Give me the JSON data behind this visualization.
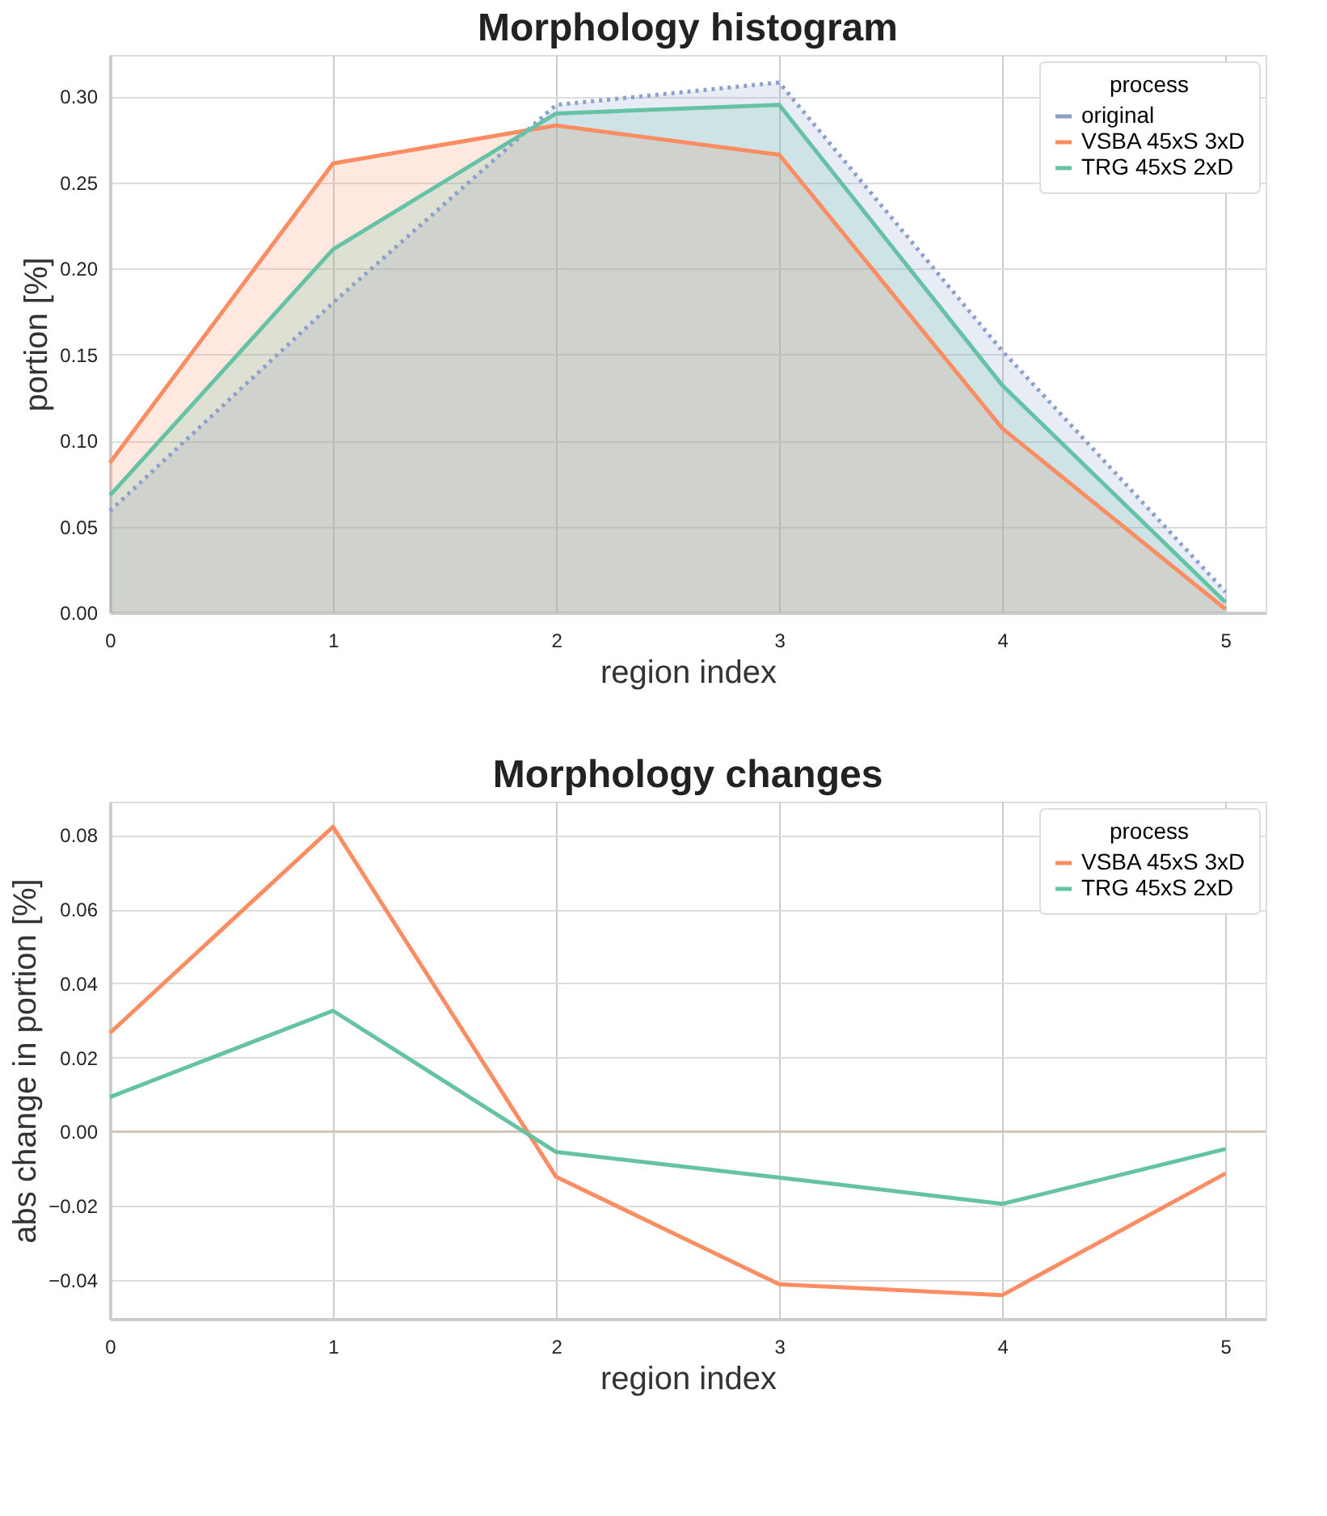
{
  "chart_data": [
    {
      "type": "area",
      "title": "Morphology histogram",
      "xlabel": "region index",
      "ylabel": "portion [%]",
      "legend_title": "process",
      "legend": "top right",
      "grid": true,
      "x": [
        0,
        1,
        2,
        3,
        4,
        5
      ],
      "xlim": [
        0,
        5.18
      ],
      "xticks": [
        0,
        1,
        2,
        3,
        4,
        5
      ],
      "ylim": [
        0,
        0.324
      ],
      "yticks": [
        {
          "value": 0,
          "label": "0.00"
        },
        0.05,
        {
          "value": 0.1,
          "label": "0.10"
        },
        0.15,
        {
          "value": 0.2,
          "label": "0.20"
        },
        0.25,
        {
          "value": 0.3,
          "label": "0.30"
        }
      ],
      "series": [
        {
          "name": "original",
          "line_style": "dotted",
          "color": "#8da0cb",
          "values": [
            0.059,
            0.18,
            0.295,
            0.308,
            0.152,
            0.012
          ]
        },
        {
          "name": "VSBA 45xS 3xD",
          "line_style": "solid",
          "color": "#fc8d62",
          "values": [
            0.087,
            0.261,
            0.283,
            0.266,
            0.107,
            0.002
          ]
        },
        {
          "name": "TRG 45xS 2xD",
          "line_style": "solid",
          "color": "#66c2a5",
          "values": [
            0.068,
            0.211,
            0.29,
            0.295,
            0.132,
            0.006
          ]
        }
      ]
    },
    {
      "type": "line",
      "title": "Morphology changes",
      "xlabel": "region index",
      "ylabel": "abs change in portion [%]",
      "legend_title": "process",
      "legend": "top right",
      "grid": true,
      "x": [
        0,
        1,
        2,
        3,
        4,
        5
      ],
      "xlim": [
        0,
        5.18
      ],
      "xticks": [
        0,
        1,
        2,
        3,
        4,
        5
      ],
      "ylim": [
        -0.0505,
        0.089
      ],
      "yticks": [
        -0.04,
        -0.02,
        {
          "value": 0,
          "label": "0.00"
        },
        0.02,
        0.04,
        0.06,
        0.08
      ],
      "ref_lines": [
        {
          "axis": "y",
          "value": 0,
          "color": "#d2c6b6"
        }
      ],
      "series": [
        {
          "name": "VSBA 45xS 3xD",
          "line_style": "solid",
          "color": "#fc8d62",
          "values": [
            0.0266,
            0.0822,
            -0.0122,
            -0.0412,
            -0.0441,
            -0.0113
          ]
        },
        {
          "name": "TRG 45xS 2xD",
          "line_style": "solid",
          "color": "#66c2a5",
          "values": [
            0.0093,
            0.0326,
            -0.0055,
            -0.0124,
            -0.0195,
            -0.0047
          ]
        }
      ]
    }
  ]
}
